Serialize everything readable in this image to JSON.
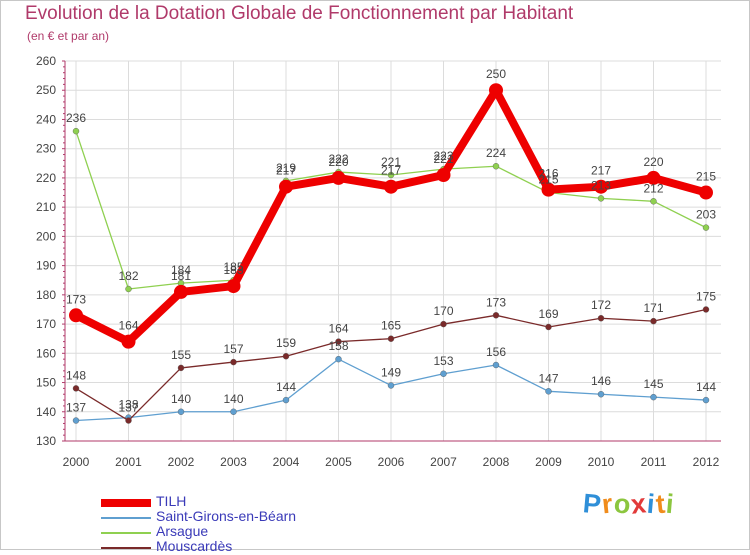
{
  "chart_data": {
    "type": "line",
    "title": "Evolution de la Dotation Globale de Fonctionnement par Habitant",
    "subtitle": "(en € et par an)",
    "x": [
      "2000",
      "2001",
      "2002",
      "2003",
      "2004",
      "2005",
      "2006",
      "2007",
      "2008",
      "2009",
      "2010",
      "2011",
      "2012"
    ],
    "ylim": [
      130,
      260
    ],
    "yticks": [
      "130",
      "140",
      "150",
      "160",
      "170",
      "180",
      "190",
      "200",
      "210",
      "220",
      "230",
      "240",
      "250",
      "260"
    ],
    "grid": true,
    "legend_position": "bottom-left",
    "series": [
      {
        "name": "TILH",
        "color": "#ee0000",
        "values": [
          173,
          164,
          181,
          183,
          217,
          220,
          217,
          221,
          250,
          216,
          217,
          220,
          215
        ],
        "labels": [
          "173",
          "164",
          "181",
          "183",
          "217",
          "220",
          "217",
          "221",
          "250",
          "216",
          "217",
          "220",
          "215"
        ]
      },
      {
        "name": "Saint-Girons-en-Béarn",
        "color": "#5f9fd0",
        "values": [
          137,
          138,
          140,
          140,
          144,
          158,
          149,
          153,
          156,
          147,
          146,
          145,
          144
        ],
        "labels": [
          "137",
          "138",
          "140",
          "140",
          "144",
          "158",
          "149",
          "153",
          "156",
          "147",
          "146",
          "145",
          "144"
        ]
      },
      {
        "name": "Arsague",
        "color": "#8fd050",
        "values": [
          236,
          182,
          184,
          185,
          219,
          222,
          221,
          223,
          224,
          215,
          213,
          212,
          203
        ],
        "labels": [
          "236",
          "182",
          "184",
          "185",
          "219",
          "222",
          "221",
          "223",
          "224",
          "215",
          "213",
          "212",
          "203"
        ]
      },
      {
        "name": "Mouscardès",
        "color": "#7a2a2a",
        "values": [
          148,
          137,
          155,
          157,
          159,
          164,
          165,
          170,
          173,
          169,
          172,
          171,
          175
        ],
        "labels": [
          "148",
          "137",
          "155",
          "157",
          "159",
          "164",
          "165",
          "170",
          "173",
          "169",
          "172",
          "171",
          "175"
        ]
      }
    ]
  },
  "brand": {
    "letters": [
      "P",
      "r",
      "o",
      "x",
      "i",
      "t",
      "i"
    ],
    "colors": [
      "#2f8fd8",
      "#f08c1c",
      "#8cc63f",
      "#e23a3a",
      "#2f8fd8",
      "#f08c1c",
      "#8cc63f"
    ]
  }
}
